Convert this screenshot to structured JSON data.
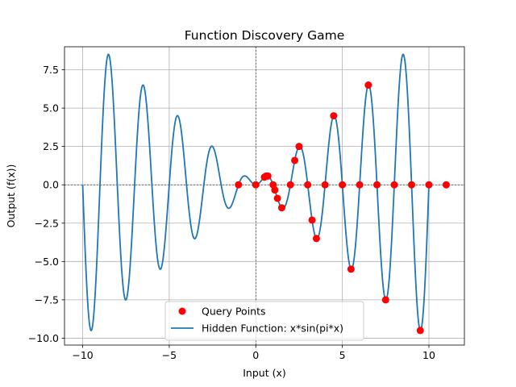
{
  "chart_data": {
    "type": "scatter",
    "title": "Function Discovery Game",
    "xlabel": "Input (x)",
    "ylabel": "Output (f(x))",
    "xlim": [
      -11.05,
      12.05
    ],
    "ylim": [
      -10.45,
      9.0
    ],
    "xticks": [
      -10,
      -5,
      0,
      5,
      10
    ],
    "xtick_labels": [
      "−10",
      "−5",
      "0",
      "5",
      "10"
    ],
    "yticks": [
      -10.0,
      -7.5,
      -5.0,
      -2.5,
      0.0,
      2.5,
      5.0,
      7.5
    ],
    "ytick_labels": [
      "−10.0",
      "−7.5",
      "−5.0",
      "−2.5",
      "0.0",
      "2.5",
      "5.0",
      "7.5"
    ],
    "grid": true,
    "zero_lines": {
      "x": 0,
      "y": 0,
      "style": "dashed"
    },
    "legend_position": "lower-center",
    "series": [
      {
        "name": "Query Points",
        "kind": "scatter",
        "color": "#ff0000",
        "points": [
          {
            "x": -1,
            "y": 0.0
          },
          {
            "x": 0,
            "y": 0.0
          },
          {
            "x": 0.5,
            "y": 0.5
          },
          {
            "x": 0.6,
            "y": 0.57
          },
          {
            "x": 0.7,
            "y": 0.57
          },
          {
            "x": 1.0,
            "y": 0.0
          },
          {
            "x": 1.1,
            "y": -0.34
          },
          {
            "x": 1.25,
            "y": -0.88
          },
          {
            "x": 1.5,
            "y": -1.5
          },
          {
            "x": 2.0,
            "y": 0.0
          },
          {
            "x": 2.25,
            "y": 1.59
          },
          {
            "x": 2.5,
            "y": 2.5
          },
          {
            "x": 3.0,
            "y": 0.0
          },
          {
            "x": 3.25,
            "y": -2.3
          },
          {
            "x": 3.5,
            "y": -3.5
          },
          {
            "x": 4.0,
            "y": 0.0
          },
          {
            "x": 4.5,
            "y": 4.5
          },
          {
            "x": 5.0,
            "y": 0.0
          },
          {
            "x": 5.5,
            "y": -5.5
          },
          {
            "x": 6.0,
            "y": 0.0
          },
          {
            "x": 6.5,
            "y": 6.5
          },
          {
            "x": 7.0,
            "y": 0.0
          },
          {
            "x": 7.5,
            "y": -7.5
          },
          {
            "x": 8.0,
            "y": 0.0
          },
          {
            "x": 9.0,
            "y": 0.0
          },
          {
            "x": 9.5,
            "y": -9.5
          },
          {
            "x": 10.0,
            "y": 0.0
          },
          {
            "x": 11.0,
            "y": 0.0
          }
        ]
      },
      {
        "name": "Hidden Function: x*sin(pi*x)",
        "kind": "line",
        "color": "#1f77b4",
        "function": "x*sin(pi*x)",
        "domain": [
          -10,
          10
        ],
        "samples": 1000
      }
    ]
  }
}
